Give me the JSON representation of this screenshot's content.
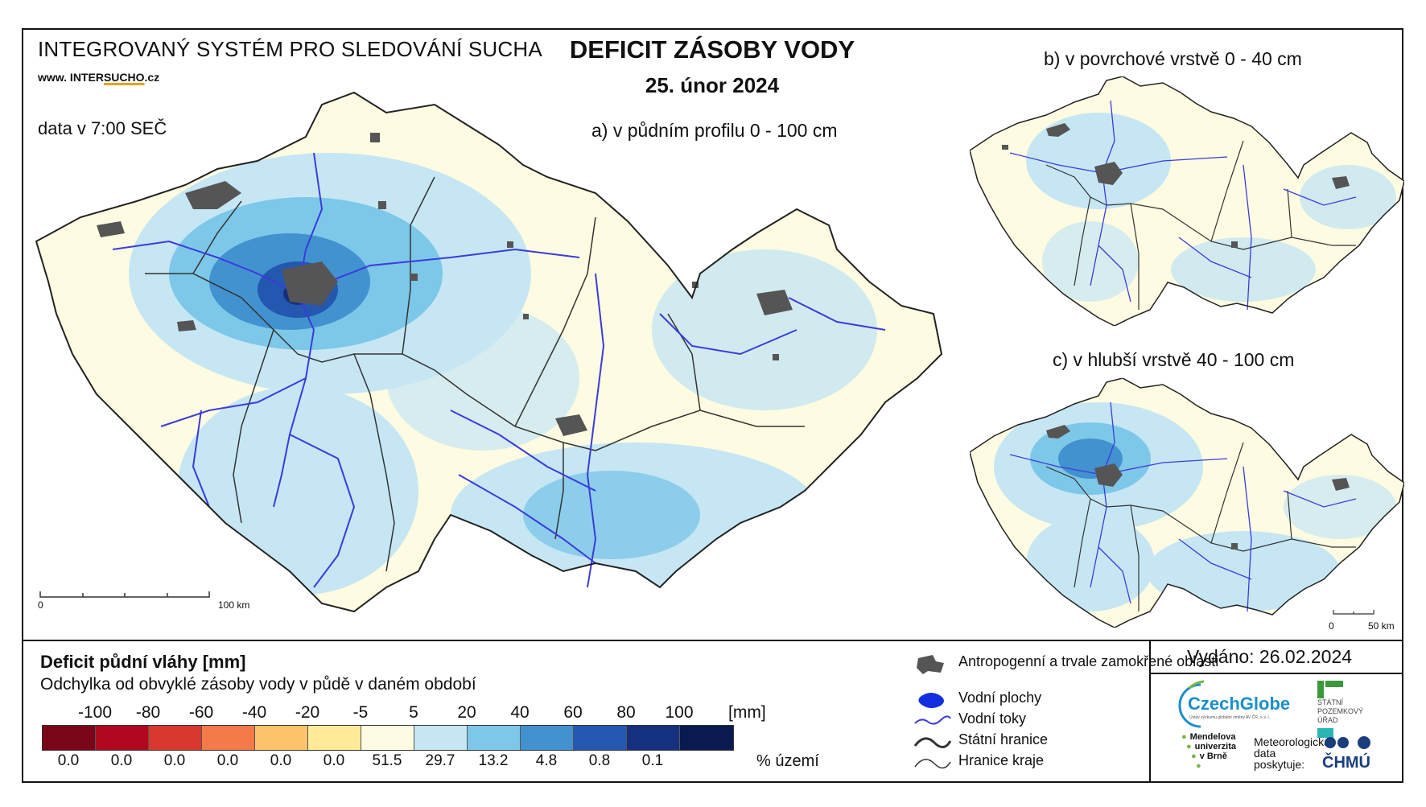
{
  "header": {
    "system_title": "INTEGROVANÝ SYSTÉM PRO SLEDOVÁNÍ SUCHA",
    "url_prefix": "www. INTER",
    "url_highlight": "SUCHO",
    "url_suffix": ".cz",
    "data_time": "data v 7:00 SEČ",
    "main_title": "DEFICIT ZÁSOBY VODY",
    "date": "25. únor 2024"
  },
  "maps": {
    "a_label": "a) v půdním profilu 0 - 100 cm",
    "b_label": "b) v povrchové vrstvě 0 - 40 cm",
    "c_label": "c) v hlubší vrstvě 40 - 100 cm",
    "scale_main_start": "0",
    "scale_main_end": "100 km",
    "scale_small_start": "0",
    "scale_small_end": "50 km"
  },
  "legend": {
    "title": "Deficit půdní vláhy  [mm]",
    "subtitle": "Odchylka od obvyklé zásoby vody v půdě v daném období",
    "ticks": [
      "-100",
      "-80",
      "-60",
      "-40",
      "-20",
      "-5",
      "5",
      "20",
      "40",
      "60",
      "80",
      "100"
    ],
    "unit": "[mm]",
    "classes": [
      {
        "color": "#7a0519",
        "percent": "0.0"
      },
      {
        "color": "#b0091f",
        "percent": "0.0"
      },
      {
        "color": "#d9382e",
        "percent": "0.0"
      },
      {
        "color": "#f47a4a",
        "percent": "0.0"
      },
      {
        "color": "#fcc36a",
        "percent": "0.0"
      },
      {
        "color": "#fdeb99",
        "percent": "0.0"
      },
      {
        "color": "#fdfbe1",
        "percent": "51.5"
      },
      {
        "color": "#c6e6f4",
        "percent": "29.7"
      },
      {
        "color": "#7dc7e8",
        "percent": "13.2"
      },
      {
        "color": "#4292d0",
        "percent": "4.8"
      },
      {
        "color": "#2458b0",
        "percent": "0.8"
      },
      {
        "color": "#14307e",
        "percent": "0.1"
      },
      {
        "color": "#081a4f",
        "percent": ""
      }
    ],
    "percent_unit": "% území"
  },
  "symbols": {
    "urban": "Antropogenní a trvale zamokřené oblasti",
    "water_bodies": "Vodní plochy",
    "rivers": "Vodní toky",
    "state_border": "Státní hranice",
    "region_border": "Hranice kraje"
  },
  "footer": {
    "issued": "Vydáno: 26.02.2024",
    "czechglobe": "CzechGlobe",
    "czechglobe_sub": "Ústav výzkumu globální změny AV ČR, v. v. i.",
    "spu_line1": "STÁTNÍ",
    "spu_line2": "POZEMKOVÝ",
    "spu_line3": "ÚŘAD",
    "mendel_line1": "Mendelova",
    "mendel_line2": "univerzita",
    "mendel_line3": "v Brně",
    "chmu_text_line1": "Meteorologická",
    "chmu_text_line2": "data",
    "chmu_text_line3": "poskytuje:",
    "chmu": "ČHMÚ"
  },
  "colors": {
    "land": "#fdfbe1",
    "light_blue": "#c6e6f4",
    "mid_blue": "#7dc7e8",
    "blue": "#4292d0",
    "dark_blue": "#2458b0",
    "river": "#3b3bdc",
    "urban": "#555555",
    "border": "#333333"
  }
}
